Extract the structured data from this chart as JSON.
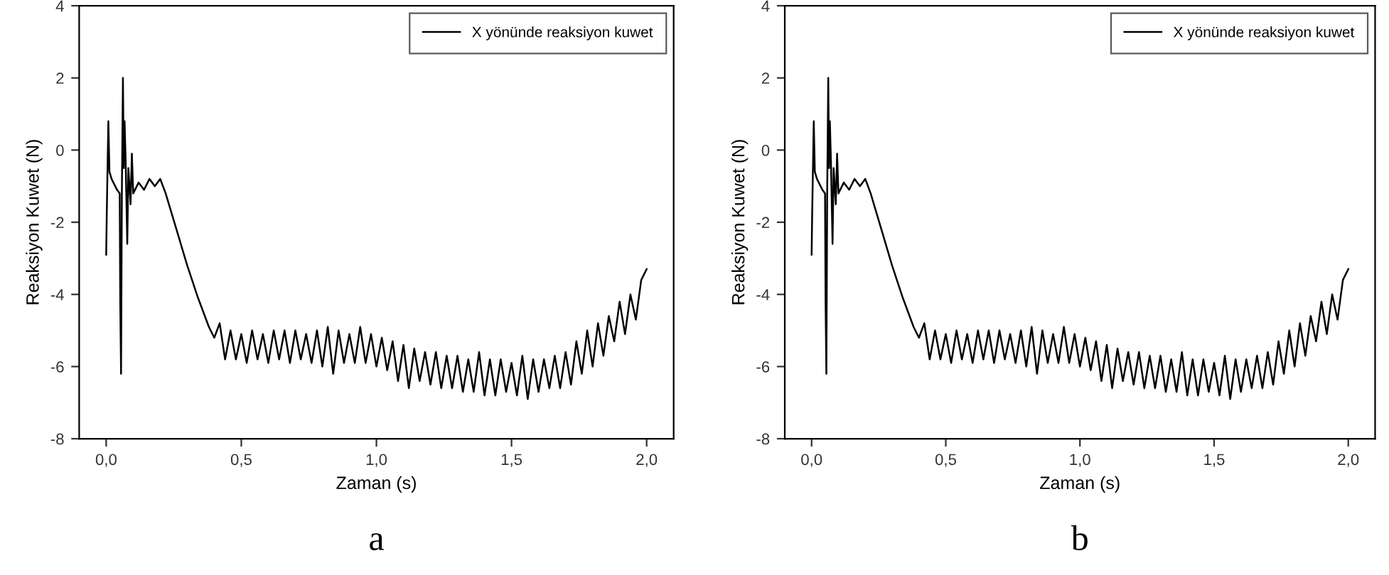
{
  "chart_data": [
    {
      "type": "line",
      "xlabel": "Zaman (s)",
      "ylabel": "Reaksiyon Kuwet (N)",
      "annotations": [
        "a"
      ],
      "legend": "top right",
      "grid": false,
      "xlim": [
        -0.1,
        2.1
      ],
      "xticks": [
        {
          "value": 0,
          "label": "0,0"
        },
        {
          "value": 0.5,
          "label": "0,5"
        },
        {
          "value": 1,
          "label": "1,0"
        },
        {
          "value": 1.5,
          "label": "1,5"
        },
        {
          "value": 2,
          "label": "2,0"
        }
      ],
      "ylim": [
        -8,
        4
      ],
      "yticks": [
        -8,
        -6,
        -4,
        -2,
        0,
        2,
        4
      ],
      "series": [
        {
          "name": "X yönünde reaksiyon kuwet",
          "color": "#000000",
          "x": [
            0.0,
            0.002,
            0.008,
            0.012,
            0.02,
            0.04,
            0.05,
            0.052,
            0.055,
            0.058,
            0.062,
            0.065,
            0.068,
            0.072,
            0.078,
            0.082,
            0.09,
            0.095,
            0.1,
            0.12,
            0.14,
            0.16,
            0.18,
            0.2,
            0.22,
            0.26,
            0.3,
            0.34,
            0.38,
            0.4,
            0.42,
            0.44,
            0.46,
            0.48,
            0.5,
            0.52,
            0.54,
            0.56,
            0.58,
            0.6,
            0.62,
            0.64,
            0.66,
            0.68,
            0.7,
            0.72,
            0.74,
            0.76,
            0.78,
            0.8,
            0.82,
            0.84,
            0.86,
            0.88,
            0.9,
            0.92,
            0.94,
            0.96,
            0.98,
            1.0,
            1.02,
            1.04,
            1.06,
            1.08,
            1.1,
            1.12,
            1.14,
            1.16,
            1.18,
            1.2,
            1.22,
            1.24,
            1.26,
            1.28,
            1.3,
            1.32,
            1.34,
            1.36,
            1.38,
            1.4,
            1.42,
            1.44,
            1.46,
            1.48,
            1.5,
            1.52,
            1.54,
            1.56,
            1.58,
            1.6,
            1.62,
            1.64,
            1.66,
            1.68,
            1.7,
            1.72,
            1.74,
            1.76,
            1.78,
            1.8,
            1.82,
            1.84,
            1.86,
            1.88,
            1.9,
            1.92,
            1.94,
            1.96,
            1.98,
            2.0
          ],
          "values": [
            -2.9,
            -1.8,
            0.8,
            -0.6,
            -0.8,
            -1.1,
            -1.2,
            -4.2,
            -6.2,
            -1.2,
            2.0,
            -0.5,
            0.8,
            -0.3,
            -2.6,
            -0.5,
            -1.5,
            -0.1,
            -1.2,
            -0.9,
            -1.1,
            -0.8,
            -1.0,
            -0.8,
            -1.2,
            -2.2,
            -3.2,
            -4.1,
            -4.9,
            -5.2,
            -4.8,
            -5.8,
            -5.0,
            -5.8,
            -5.1,
            -5.9,
            -5.0,
            -5.8,
            -5.1,
            -5.9,
            -5.0,
            -5.8,
            -5.0,
            -5.9,
            -5.0,
            -5.8,
            -5.1,
            -5.9,
            -5.0,
            -6.0,
            -4.9,
            -6.2,
            -5.0,
            -5.9,
            -5.1,
            -5.9,
            -4.9,
            -5.9,
            -5.1,
            -6.0,
            -5.2,
            -6.1,
            -5.3,
            -6.4,
            -5.4,
            -6.6,
            -5.5,
            -6.4,
            -5.6,
            -6.5,
            -5.6,
            -6.6,
            -5.7,
            -6.6,
            -5.7,
            -6.7,
            -5.8,
            -6.7,
            -5.6,
            -6.8,
            -5.8,
            -6.8,
            -5.8,
            -6.7,
            -5.9,
            -6.8,
            -5.7,
            -6.9,
            -5.8,
            -6.7,
            -5.8,
            -6.6,
            -5.7,
            -6.6,
            -5.6,
            -6.5,
            -5.3,
            -6.2,
            -5.0,
            -6.0,
            -4.8,
            -5.7,
            -4.6,
            -5.3,
            -4.2,
            -5.1,
            -4.0,
            -4.7,
            -3.6,
            -3.3
          ]
        }
      ]
    },
    {
      "type": "line",
      "xlabel": "Zaman (s)",
      "ylabel": "Reaksiyon Kuwet (N)",
      "annotations": [
        "b"
      ],
      "legend": "top right",
      "grid": false,
      "xlim": [
        -0.1,
        2.1
      ],
      "xticks": [
        {
          "value": 0,
          "label": "0,0"
        },
        {
          "value": 0.5,
          "label": "0,5"
        },
        {
          "value": 1,
          "label": "1,0"
        },
        {
          "value": 1.5,
          "label": "1,5"
        },
        {
          "value": 2,
          "label": "2,0"
        }
      ],
      "ylim": [
        -8,
        4
      ],
      "yticks": [
        -8,
        -6,
        -4,
        -2,
        0,
        2,
        4
      ],
      "series": [
        {
          "name": "X yönünde reaksiyon kuwet",
          "color": "#000000",
          "x": [
            0.0,
            0.002,
            0.008,
            0.012,
            0.02,
            0.04,
            0.05,
            0.052,
            0.055,
            0.058,
            0.062,
            0.065,
            0.068,
            0.072,
            0.078,
            0.082,
            0.09,
            0.095,
            0.1,
            0.12,
            0.14,
            0.16,
            0.18,
            0.2,
            0.22,
            0.26,
            0.3,
            0.34,
            0.38,
            0.4,
            0.42,
            0.44,
            0.46,
            0.48,
            0.5,
            0.52,
            0.54,
            0.56,
            0.58,
            0.6,
            0.62,
            0.64,
            0.66,
            0.68,
            0.7,
            0.72,
            0.74,
            0.76,
            0.78,
            0.8,
            0.82,
            0.84,
            0.86,
            0.88,
            0.9,
            0.92,
            0.94,
            0.96,
            0.98,
            1.0,
            1.02,
            1.04,
            1.06,
            1.08,
            1.1,
            1.12,
            1.14,
            1.16,
            1.18,
            1.2,
            1.22,
            1.24,
            1.26,
            1.28,
            1.3,
            1.32,
            1.34,
            1.36,
            1.38,
            1.4,
            1.42,
            1.44,
            1.46,
            1.48,
            1.5,
            1.52,
            1.54,
            1.56,
            1.58,
            1.6,
            1.62,
            1.64,
            1.66,
            1.68,
            1.7,
            1.72,
            1.74,
            1.76,
            1.78,
            1.8,
            1.82,
            1.84,
            1.86,
            1.88,
            1.9,
            1.92,
            1.94,
            1.96,
            1.98,
            2.0
          ],
          "values": [
            -2.9,
            -1.8,
            0.8,
            -0.6,
            -0.8,
            -1.1,
            -1.2,
            -4.2,
            -6.2,
            -1.2,
            2.0,
            -0.5,
            0.8,
            -0.3,
            -2.6,
            -0.5,
            -1.5,
            -0.1,
            -1.2,
            -0.9,
            -1.1,
            -0.8,
            -1.0,
            -0.8,
            -1.2,
            -2.2,
            -3.2,
            -4.1,
            -4.9,
            -5.2,
            -4.8,
            -5.8,
            -5.0,
            -5.8,
            -5.1,
            -5.9,
            -5.0,
            -5.8,
            -5.1,
            -5.9,
            -5.0,
            -5.8,
            -5.0,
            -5.9,
            -5.0,
            -5.8,
            -5.1,
            -5.9,
            -5.0,
            -6.0,
            -4.9,
            -6.2,
            -5.0,
            -5.9,
            -5.1,
            -5.9,
            -4.9,
            -5.9,
            -5.1,
            -6.0,
            -5.2,
            -6.1,
            -5.3,
            -6.4,
            -5.4,
            -6.6,
            -5.5,
            -6.4,
            -5.6,
            -6.5,
            -5.6,
            -6.6,
            -5.7,
            -6.6,
            -5.7,
            -6.7,
            -5.8,
            -6.7,
            -5.6,
            -6.8,
            -5.8,
            -6.8,
            -5.8,
            -6.7,
            -5.9,
            -6.8,
            -5.7,
            -6.9,
            -5.8,
            -6.7,
            -5.8,
            -6.6,
            -5.7,
            -6.6,
            -5.6,
            -6.5,
            -5.3,
            -6.2,
            -5.0,
            -6.0,
            -4.8,
            -5.7,
            -4.6,
            -5.3,
            -4.2,
            -5.1,
            -4.0,
            -4.7,
            -3.6,
            -3.3
          ]
        }
      ]
    }
  ]
}
